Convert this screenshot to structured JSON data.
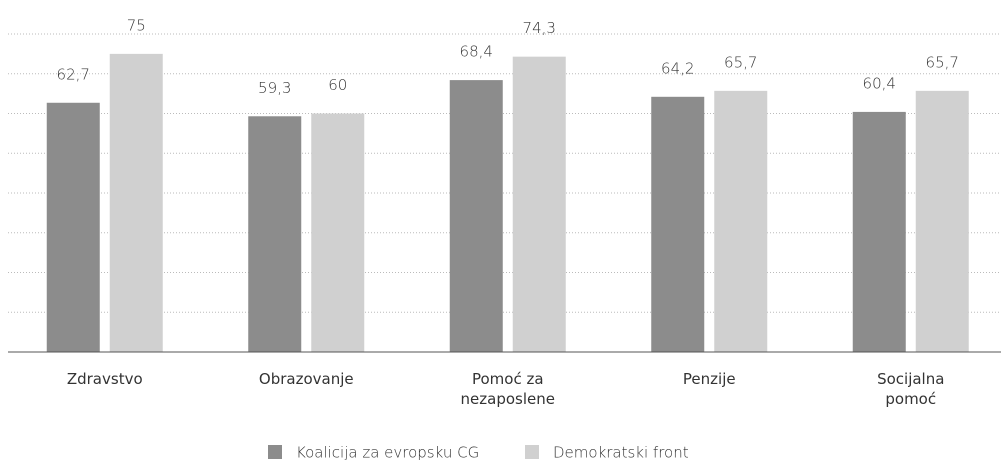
{
  "chart_data": {
    "type": "bar",
    "categories": [
      "Zdravstvo",
      "Obrazovanje",
      "Pomoć za nezaposlene",
      "Penzije",
      "Socijalna pomoć"
    ],
    "series": [
      {
        "name": "Koalicija za evropsku CG",
        "color": "#8c8c8c",
        "values": [
          62.7,
          59.3,
          68.4,
          64.2,
          60.4
        ],
        "value_labels": [
          "62,7",
          "59,3",
          "68,4",
          "64,2",
          "60,4"
        ]
      },
      {
        "name": "Demokratski front",
        "color": "#d0d0d0",
        "values": [
          75,
          60,
          74.3,
          65.7,
          65.7
        ],
        "value_labels": [
          "75",
          "60",
          "74,3",
          "65,7",
          "65,7"
        ]
      }
    ],
    "ylim": [
      0,
      80
    ],
    "yticks": [
      0,
      10,
      20,
      30,
      40,
      50,
      60,
      70,
      80
    ],
    "grid": true,
    "legend": "bottom"
  }
}
